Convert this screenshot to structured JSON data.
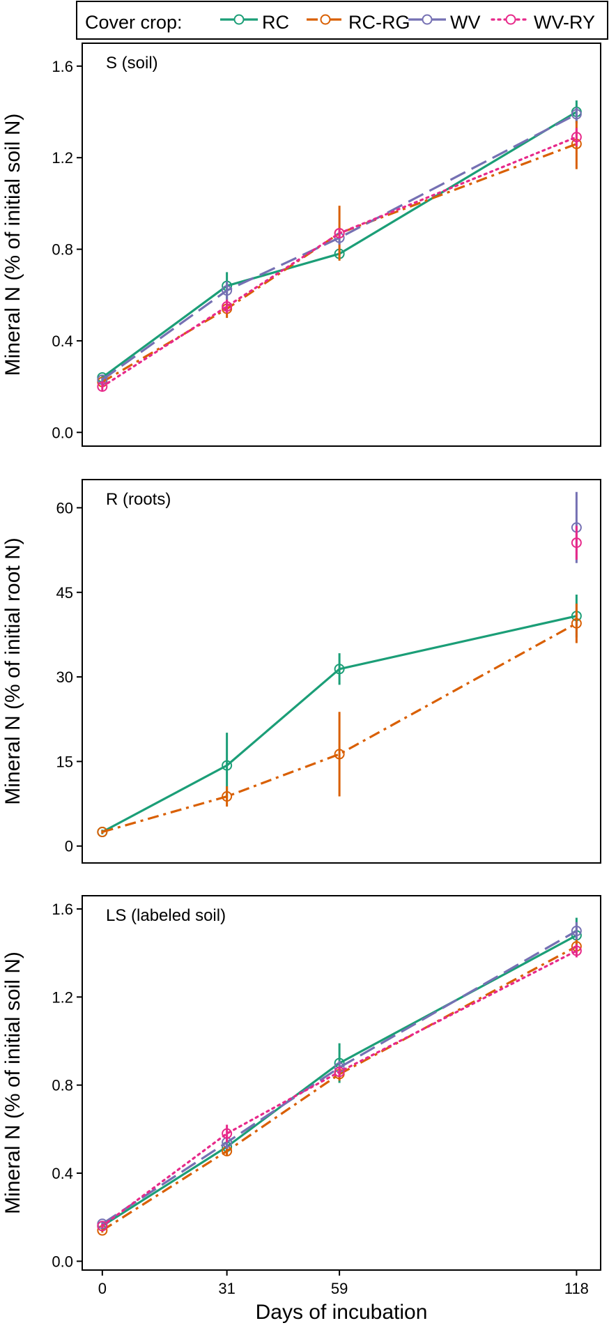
{
  "legend": {
    "title": "Cover crop:",
    "entries": [
      {
        "name": "RC",
        "color": "#1b9e77",
        "dash": "solid"
      },
      {
        "name": "RC-RG",
        "color": "#d95f02",
        "dash": "dashdot"
      },
      {
        "name": "WV",
        "color": "#7570b3",
        "dash": "longdash"
      },
      {
        "name": "WV-RY",
        "color": "#e7298a",
        "dash": "dotted"
      }
    ]
  },
  "x_axis": {
    "label": "Days of incubation",
    "ticks": [
      0,
      31,
      59,
      118
    ],
    "tick_labels": [
      "0",
      "31",
      "59",
      "118"
    ],
    "range": [
      -5,
      124
    ]
  },
  "chart_data": [
    {
      "type": "line",
      "panel": "S (soil)",
      "ylabel": "Mineral N (% of initial soil N)",
      "ylim": [
        -0.06,
        1.7
      ],
      "yticks": [
        0.0,
        0.4,
        0.8,
        1.2,
        1.6
      ],
      "ytick_labels": [
        "0.0",
        "0.4",
        "0.8",
        "1.2",
        "1.6"
      ],
      "x": [
        0,
        31,
        59,
        118
      ],
      "series": [
        {
          "name": "RC",
          "values": [
            0.24,
            0.64,
            0.78,
            1.4
          ],
          "err": [
            0.01,
            0.06,
            0.02,
            0.05
          ]
        },
        {
          "name": "RC-RG",
          "values": [
            0.22,
            0.54,
            0.87,
            1.26
          ],
          "err": [
            0.01,
            0.04,
            0.12,
            0.11
          ]
        },
        {
          "name": "WV",
          "values": [
            0.23,
            0.62,
            0.85,
            1.39
          ],
          "err": [
            0.01,
            0.04,
            0.03,
            0.03
          ]
        },
        {
          "name": "WV-RY",
          "values": [
            0.2,
            0.55,
            0.87,
            1.29
          ],
          "err": [
            0.02,
            0.03,
            0.02,
            0.04
          ]
        }
      ]
    },
    {
      "type": "line",
      "panel": "R (roots)",
      "ylabel": "Mineral N (% of initial root N)",
      "ylim": [
        -3,
        65
      ],
      "yticks": [
        0,
        15,
        30,
        45,
        60
      ],
      "ytick_labels": [
        "0",
        "15",
        "30",
        "45",
        "60"
      ],
      "x": [
        0,
        31,
        59,
        118
      ],
      "series": [
        {
          "name": "RC",
          "values": [
            2.5,
            14.3,
            31.4,
            40.8
          ],
          "err": [
            0.4,
            5.8,
            2.8,
            3.8
          ]
        },
        {
          "name": "RC-RG",
          "values": [
            2.5,
            8.8,
            16.3,
            39.5
          ],
          "err": [
            0.3,
            1.8,
            7.5,
            3.5
          ]
        },
        {
          "name": "WV",
          "values": [
            null,
            null,
            null,
            56.5
          ],
          "err": [
            null,
            null,
            null,
            6.3
          ]
        },
        {
          "name": "WV-RY",
          "values": [
            null,
            null,
            null,
            53.8
          ],
          "err": [
            null,
            null,
            null,
            3.0
          ]
        }
      ]
    },
    {
      "type": "line",
      "panel": "LS (labeled soil)",
      "ylabel": "Mineral N (% of initial soil N)",
      "ylim": [
        -0.04,
        1.66
      ],
      "yticks": [
        0.0,
        0.4,
        0.8,
        1.2,
        1.6
      ],
      "ytick_labels": [
        "0.0",
        "0.4",
        "0.8",
        "1.2",
        "1.6"
      ],
      "x": [
        0,
        31,
        59,
        118
      ],
      "series": [
        {
          "name": "RC",
          "values": [
            0.16,
            0.52,
            0.9,
            1.48
          ],
          "err": [
            0.01,
            0.03,
            0.09,
            0.08
          ]
        },
        {
          "name": "RC-RG",
          "values": [
            0.14,
            0.5,
            0.85,
            1.43
          ],
          "err": [
            0.01,
            0.02,
            0.03,
            0.03
          ]
        },
        {
          "name": "WV",
          "values": [
            0.17,
            0.54,
            0.88,
            1.5
          ],
          "err": [
            0.01,
            0.03,
            0.03,
            0.04
          ]
        },
        {
          "name": "WV-RY",
          "values": [
            0.16,
            0.58,
            0.86,
            1.41
          ],
          "err": [
            0.01,
            0.04,
            0.02,
            0.03
          ]
        }
      ]
    }
  ]
}
